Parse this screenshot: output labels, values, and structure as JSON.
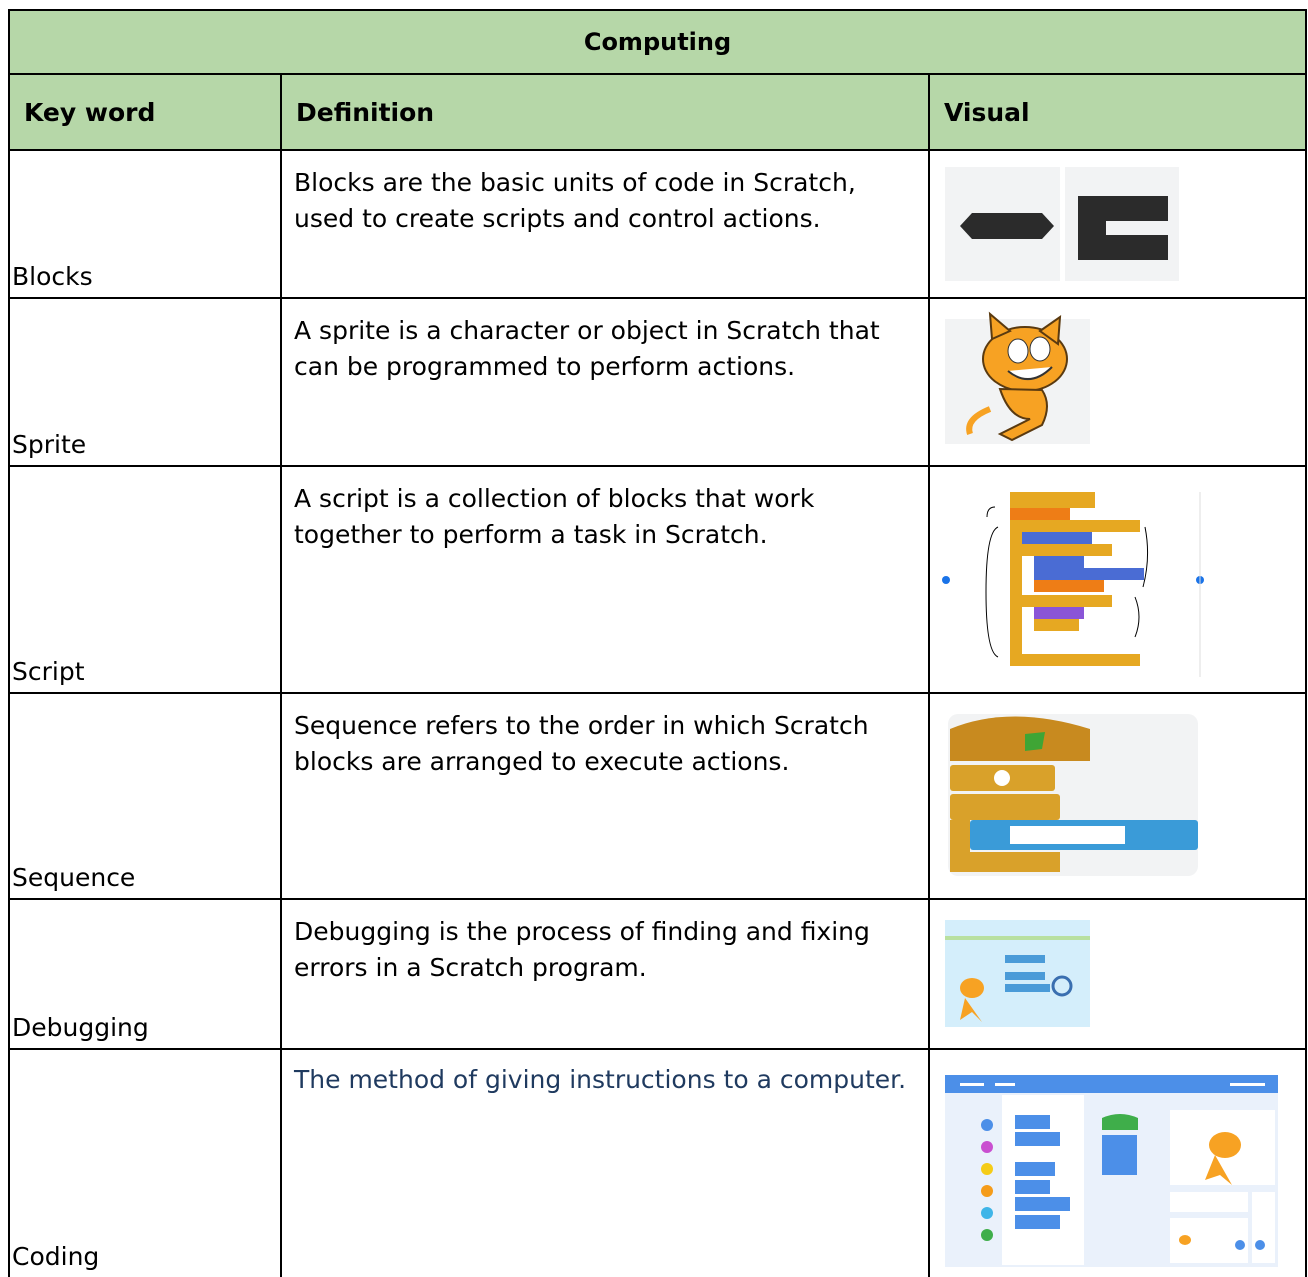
{
  "header": {
    "title": "Computing"
  },
  "table": {
    "columns": [
      "Key word",
      "Definition",
      "Visual"
    ],
    "rows": [
      [
        "Blocks",
        "Blocks are the basic units of code in Scratch, used to create scripts and control actions."
      ],
      [
        "Sprite",
        "A sprite is a character or object in Scratch that can be programmed to perform actions."
      ],
      [
        "Script",
        "A script is a collection of blocks that work together to perform a task in Scratch."
      ],
      [
        "Sequence",
        "Sequence refers to the order in which Scratch blocks are arranged to execute actions."
      ],
      [
        "Debugging",
        "Debugging is the process of finding and fixing errors in a Scratch program."
      ],
      [
        "Coding",
        "The method of giving instructions to a computer."
      ]
    ]
  }
}
